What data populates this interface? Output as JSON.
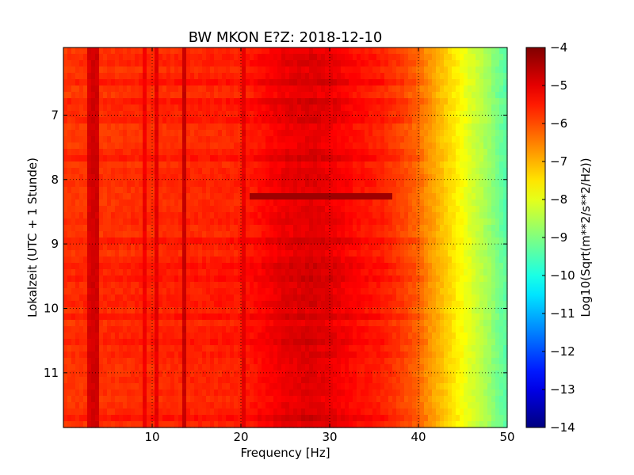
{
  "chart_data": {
    "type": "heatmap",
    "title": "BW MKON E?Z: 2018-12-10",
    "xlabel": "Frequency [Hz]",
    "ylabel": "Lokalzeit (UTC + 1 Stunde)",
    "colorbar_label": "Log10(Sqrt(m**2/s**2/Hz))",
    "xlim": [
      0,
      50
    ],
    "ylim": [
      5.95,
      11.85
    ],
    "y_inverted": true,
    "grid": true,
    "colormap": "jet",
    "clim": [
      -14,
      -4
    ],
    "x_ticks": [
      10,
      20,
      30,
      40,
      50
    ],
    "x_tick_labels": [
      "10",
      "20",
      "30",
      "40",
      "50"
    ],
    "y_ticks": [
      7,
      8,
      9,
      10,
      11
    ],
    "y_tick_labels": [
      "7",
      "8",
      "9",
      "10",
      "11"
    ],
    "colorbar_ticks": [
      -4,
      -5,
      -6,
      -7,
      -8,
      -9,
      -10,
      -11,
      -12,
      -13,
      -14
    ],
    "colorbar_tick_labels": [
      "−4",
      "−5",
      "−6",
      "−7",
      "−8",
      "−9",
      "−10",
      "−11",
      "−12",
      "−13",
      "−14"
    ],
    "spectral_profile": {
      "frequency_hz": [
        0,
        10,
        20,
        22,
        25,
        28,
        30,
        33,
        36,
        38,
        40,
        41,
        42,
        43,
        44,
        45,
        46,
        47,
        48,
        49,
        50
      ],
      "log10_amplitude": [
        -5.7,
        -5.6,
        -5.5,
        -5.3,
        -5.0,
        -4.9,
        -5.0,
        -5.3,
        -5.5,
        -5.8,
        -6.2,
        -6.6,
        -6.9,
        -7.2,
        -7.5,
        -7.8,
        -8.1,
        -8.4,
        -8.7,
        -9.1,
        -9.4
      ]
    },
    "bands": [
      {
        "frequency_hz": 2.8,
        "log10_amplitude": -4.9
      },
      {
        "frequency_hz": 3.6,
        "log10_amplitude": -4.8
      },
      {
        "frequency_hz": 9.2,
        "log10_amplitude": -5.1
      },
      {
        "frequency_hz": 10.5,
        "log10_amplitude": -5.0
      },
      {
        "frequency_hz": 13.7,
        "log10_amplitude": -4.7
      },
      {
        "frequency_hz": 20.2,
        "log10_amplitude": -5.0
      }
    ],
    "events": [
      {
        "time": 8.25,
        "frequency_hz": [
          21,
          37
        ],
        "log10_amplitude": -4.3
      }
    ]
  }
}
